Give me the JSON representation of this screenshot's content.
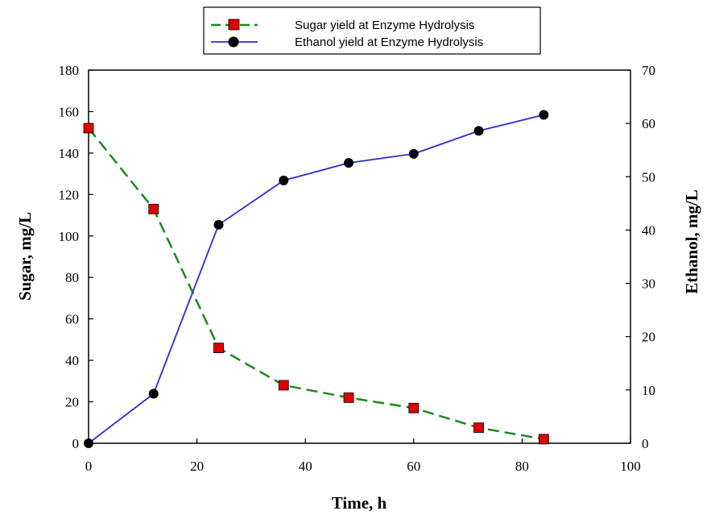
{
  "chart_data": {
    "type": "line",
    "xlabel": "Time, h",
    "ylabel": "Sugar, mg/L",
    "y2label": "Ethanol, mg/L",
    "xlim": [
      0,
      100
    ],
    "ylim": [
      0,
      180
    ],
    "y2lim": [
      0,
      70
    ],
    "x_ticks": [
      0,
      20,
      40,
      60,
      80,
      100
    ],
    "y_ticks": [
      0,
      20,
      40,
      60,
      80,
      100,
      120,
      140,
      160,
      180
    ],
    "y2_ticks": [
      0,
      10,
      20,
      30,
      40,
      50,
      60,
      70
    ],
    "grid": false,
    "legend_position": "top-center",
    "series": [
      {
        "name": "Sugar yield at Enzyme Hydrolysis",
        "axis": "left",
        "color": "#1a8a1a",
        "marker": "square",
        "marker_color": "#e00000",
        "line_style": "dashed",
        "x": [
          0,
          12,
          24,
          36,
          48,
          60,
          72,
          84
        ],
        "values": [
          152,
          113,
          46,
          28,
          22,
          17,
          7.5,
          2
        ]
      },
      {
        "name": "Ethanol yield at Enzyme Hydrolysis",
        "axis": "right",
        "color": "#2b2bd6",
        "marker": "circle",
        "marker_color": "#000000",
        "line_style": "solid",
        "x": [
          0,
          12,
          24,
          36,
          48,
          60,
          72,
          84
        ],
        "values": [
          0,
          9.3,
          41,
          49.3,
          52.6,
          54.3,
          58.6,
          61.6
        ]
      }
    ]
  }
}
